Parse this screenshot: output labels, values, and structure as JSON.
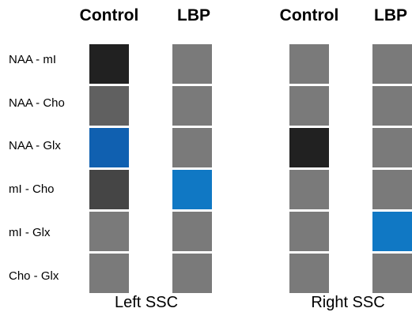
{
  "colors": {
    "gray": "#7a7a7a",
    "dark_gray": "#606060",
    "darker_gray": "#454545",
    "black": "#212121",
    "dark_blue": "#1060b0",
    "light_blue": "#1078c4"
  },
  "row_labels": [
    "NAA - mI",
    "NAA - Cho",
    "NAA - Glx",
    "mI - Cho",
    "mI - Glx",
    "Cho - Glx"
  ],
  "groups": [
    {
      "label": "Left SSC",
      "columns": [
        {
          "header": "Control",
          "cells": [
            "#212121",
            "#606060",
            "#1060b0",
            "#454545",
            "#7a7a7a",
            "#7a7a7a"
          ]
        },
        {
          "header": "LBP",
          "cells": [
            "#7a7a7a",
            "#7a7a7a",
            "#7a7a7a",
            "#1078c4",
            "#7a7a7a",
            "#7a7a7a"
          ]
        }
      ]
    },
    {
      "label": "Right SSC",
      "columns": [
        {
          "header": "Control",
          "cells": [
            "#7a7a7a",
            "#7a7a7a",
            "#212121",
            "#7a7a7a",
            "#7a7a7a",
            "#7a7a7a"
          ]
        },
        {
          "header": "LBP",
          "cells": [
            "#7a7a7a",
            "#7a7a7a",
            "#7a7a7a",
            "#7a7a7a",
            "#1078c4",
            "#7a7a7a"
          ]
        }
      ]
    }
  ]
}
